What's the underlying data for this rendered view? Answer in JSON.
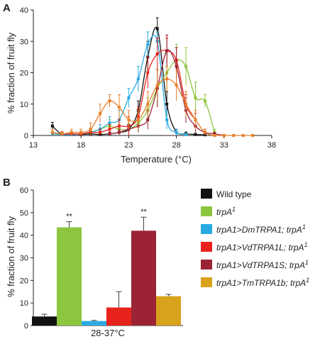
{
  "panel_a_letter": "A",
  "panel_b_letter": "B",
  "colors": {
    "wild_type": "#111111",
    "trpA1": "#8cc63f",
    "DmTRPA1": "#29abe2",
    "VdTRPA1L": "#e8231d",
    "VdTRPA1S": "#9b2335",
    "TmTRPA1b": "#e6802a",
    "TmTRPA1b_bar": "#d8a21b"
  },
  "chart_data": [
    {
      "type": "line",
      "panel": "A",
      "xlabel": "Temperature (°C)",
      "ylabel": "% fraction of fruit fly",
      "xlim": [
        13,
        38
      ],
      "ylim": [
        0,
        40
      ],
      "xticks": [
        "13",
        "18",
        "23",
        "28",
        "33",
        "38"
      ],
      "yticks": [
        "0",
        "10",
        "20",
        "30",
        "40"
      ],
      "series": [
        {
          "key": "wild_type",
          "x": [
            15,
            16,
            17,
            18,
            19,
            20,
            21,
            22,
            23,
            24,
            25,
            26,
            27,
            28,
            29,
            30,
            31
          ],
          "y": [
            3,
            0.3,
            0.5,
            0.3,
            0.5,
            0.3,
            0.5,
            1,
            2,
            8,
            25,
            34,
            10,
            1,
            0.5,
            0.3,
            0.2
          ],
          "err": [
            1.2,
            0.4,
            0.5,
            0.4,
            0.5,
            0.4,
            0.6,
            1,
            1.5,
            3,
            5,
            3.5,
            4,
            1,
            0.6,
            0.4,
            0.3
          ]
        },
        {
          "key": "trpA1",
          "x": [
            15,
            16,
            17,
            18,
            19,
            20,
            21,
            22,
            23,
            24,
            25,
            26,
            27,
            28,
            29,
            30,
            31,
            32
          ],
          "y": [
            0.5,
            0.5,
            0.3,
            0.5,
            1,
            2,
            3,
            2,
            2,
            4,
            8,
            15,
            20,
            24,
            22,
            12,
            11,
            1
          ],
          "err": [
            0.5,
            0.5,
            0.4,
            0.6,
            1,
            1.5,
            2,
            2,
            2,
            3,
            4,
            6,
            6,
            5,
            6,
            5,
            2,
            1
          ]
        },
        {
          "key": "DmTRPA1",
          "x": [
            15,
            16,
            17,
            18,
            19,
            20,
            21,
            22,
            23,
            24,
            25,
            26,
            27,
            28,
            29
          ],
          "y": [
            0.5,
            0.3,
            0.2,
            0.5,
            1,
            2,
            4,
            5,
            12,
            18,
            29,
            30,
            5,
            1,
            0.3
          ],
          "err": [
            0.5,
            0.4,
            0.3,
            0.5,
            1,
            1.5,
            2,
            3,
            3,
            4,
            4,
            3,
            3,
            1,
            0.4
          ]
        },
        {
          "key": "VdTRPA1L",
          "x": [
            16,
            17,
            18,
            19,
            20,
            21,
            22,
            23,
            24,
            25,
            26,
            27,
            28,
            29,
            30
          ],
          "y": [
            0.5,
            0.5,
            0.5,
            1,
            1,
            2,
            3,
            3,
            6,
            20,
            26,
            27,
            24,
            10,
            5
          ],
          "err": [
            0.5,
            0.5,
            0.5,
            1,
            1,
            1.5,
            2,
            3,
            3,
            5,
            5,
            4,
            4,
            3,
            2
          ]
        },
        {
          "key": "VdTRPA1S",
          "x": [
            21,
            22,
            23,
            24,
            25,
            26,
            27,
            28,
            29,
            30,
            31,
            32,
            33
          ],
          "y": [
            0.5,
            1,
            2,
            3,
            5,
            15,
            27,
            22,
            8,
            3,
            1,
            0.5,
            0
          ],
          "err": [
            0.5,
            0.8,
            1,
            2,
            3,
            6,
            5,
            6,
            4,
            2,
            1,
            0.5,
            0.2
          ]
        },
        {
          "key": "TmTRPA1b",
          "x": [
            15,
            16,
            17,
            18,
            19,
            20,
            21,
            22,
            23,
            24,
            25,
            26,
            27,
            28,
            29,
            30,
            31,
            32,
            33,
            34,
            35,
            36
          ],
          "y": [
            1,
            0.5,
            1,
            1,
            2,
            7,
            11,
            9,
            5,
            5,
            10,
            16,
            18,
            16,
            10,
            5,
            1,
            0,
            0,
            0,
            0,
            0
          ],
          "err": [
            1,
            0.8,
            1,
            1,
            2,
            3,
            2,
            4,
            3,
            3,
            4,
            5,
            4,
            5,
            4,
            3,
            1,
            0.3,
            0,
            0,
            0,
            0
          ]
        }
      ]
    },
    {
      "type": "bar",
      "panel": "B",
      "xlabel": "28-37°C",
      "ylabel": "% fraction of fruit fly",
      "ylim": [
        0,
        60
      ],
      "yticks": [
        "0",
        "10",
        "20",
        "30",
        "40",
        "50",
        "60"
      ],
      "series": [
        {
          "key": "wild_type",
          "value": 4,
          "err": 1.0,
          "sig": "",
          "legend": [
            "Wild type",
            ""
          ],
          "color_key": "wild_type"
        },
        {
          "key": "trpA1",
          "value": 43.5,
          "err": 2.5,
          "sig": "**",
          "legend": [
            "trpA",
            "1"
          ],
          "color_key": "trpA1"
        },
        {
          "key": "DmTRPA1",
          "value": 2,
          "err": 0.3,
          "sig": "",
          "legend": [
            "trpA1>DmTRPA1; trpA",
            "1"
          ],
          "color_key": "DmTRPA1"
        },
        {
          "key": "VdTRPA1L",
          "value": 8,
          "err": 7,
          "sig": "",
          "legend": [
            "trpA1>VdTRPA1L; trpA",
            "1"
          ],
          "color_key": "VdTRPA1L"
        },
        {
          "key": "VdTRPA1S",
          "value": 42,
          "err": 6,
          "sig": "**",
          "legend": [
            "trpA1>VdTRPA1S; trpA",
            "1"
          ],
          "color_key": "VdTRPA1S"
        },
        {
          "key": "TmTRPA1b",
          "value": 13,
          "err": 0.8,
          "sig": "",
          "legend": [
            "trpA1>TmTRPA1b; trpA",
            "1"
          ],
          "color_key": "TmTRPA1b_bar"
        }
      ]
    }
  ]
}
